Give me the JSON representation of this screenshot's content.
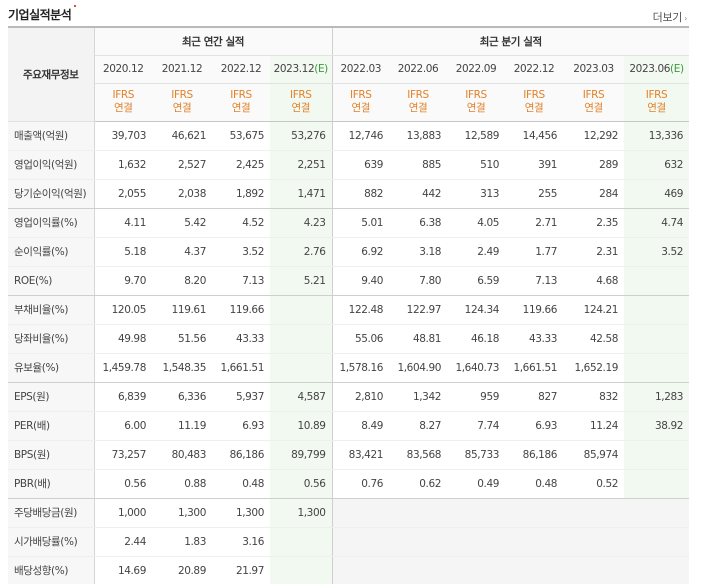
{
  "header": {
    "title": "기업실적분석",
    "more_label": "더보기",
    "more_arrow": "›"
  },
  "table": {
    "row_header_label": "주요재무정보",
    "group_annual": "최근 연간 실적",
    "group_quarter": "최근 분기 실적",
    "annual_periods": [
      {
        "label": "2020.12",
        "est": ""
      },
      {
        "label": "2021.12",
        "est": ""
      },
      {
        "label": "2022.12",
        "est": ""
      },
      {
        "label": "2023.12",
        "est": "(E)"
      }
    ],
    "quarter_periods": [
      {
        "label": "2022.03",
        "est": ""
      },
      {
        "label": "2022.06",
        "est": ""
      },
      {
        "label": "2022.09",
        "est": ""
      },
      {
        "label": "2022.12",
        "est": ""
      },
      {
        "label": "2023.03",
        "est": ""
      },
      {
        "label": "2023.06",
        "est": "(E)"
      }
    ],
    "basis_line1": "IFRS",
    "basis_line2": "연결",
    "rows": [
      {
        "label": "매출액(억원)",
        "values": [
          "39,703",
          "46,621",
          "53,675",
          "53,276",
          "12,746",
          "13,883",
          "12,589",
          "14,456",
          "12,292",
          "13,336"
        ]
      },
      {
        "label": "영업이익(억원)",
        "values": [
          "1,632",
          "2,527",
          "2,425",
          "2,251",
          "639",
          "885",
          "510",
          "391",
          "289",
          "632"
        ]
      },
      {
        "label": "당기순이익(억원)",
        "values": [
          "2,055",
          "2,038",
          "1,892",
          "1,471",
          "882",
          "442",
          "313",
          "255",
          "284",
          "469"
        ]
      },
      {
        "label": "영업이익률(%)",
        "values": [
          "4.11",
          "5.42",
          "4.52",
          "4.23",
          "5.01",
          "6.38",
          "4.05",
          "2.71",
          "2.35",
          "4.74"
        ]
      },
      {
        "label": "순이익률(%)",
        "values": [
          "5.18",
          "4.37",
          "3.52",
          "2.76",
          "6.92",
          "3.18",
          "2.49",
          "1.77",
          "2.31",
          "3.52"
        ]
      },
      {
        "label": "ROE(%)",
        "values": [
          "9.70",
          "8.20",
          "7.13",
          "5.21",
          "9.40",
          "7.80",
          "6.59",
          "7.13",
          "4.68",
          ""
        ]
      },
      {
        "label": "부채비율(%)",
        "values": [
          "120.05",
          "119.61",
          "119.66",
          "",
          "122.48",
          "122.97",
          "124.34",
          "119.66",
          "124.21",
          ""
        ]
      },
      {
        "label": "당좌비율(%)",
        "values": [
          "49.98",
          "51.56",
          "43.33",
          "",
          "55.06",
          "48.81",
          "46.18",
          "43.33",
          "42.58",
          ""
        ]
      },
      {
        "label": "유보율(%)",
        "values": [
          "1,459.78",
          "1,548.35",
          "1,661.51",
          "",
          "1,578.16",
          "1,604.90",
          "1,640.73",
          "1,661.51",
          "1,652.19",
          ""
        ]
      },
      {
        "label": "EPS(원)",
        "values": [
          "6,839",
          "6,336",
          "5,937",
          "4,587",
          "2,810",
          "1,342",
          "959",
          "827",
          "832",
          "1,283"
        ]
      },
      {
        "label": "PER(배)",
        "values": [
          "6.00",
          "11.19",
          "6.93",
          "10.89",
          "8.49",
          "8.27",
          "7.74",
          "6.93",
          "11.24",
          "38.92"
        ]
      },
      {
        "label": "BPS(원)",
        "values": [
          "73,257",
          "80,483",
          "86,186",
          "89,799",
          "83,421",
          "83,568",
          "85,733",
          "86,186",
          "85,974",
          ""
        ]
      },
      {
        "label": "PBR(배)",
        "values": [
          "0.56",
          "0.88",
          "0.48",
          "0.56",
          "0.76",
          "0.62",
          "0.49",
          "0.48",
          "0.52",
          ""
        ]
      },
      {
        "label": "주당배당금(원)",
        "values": [
          "1,000",
          "1,300",
          "1,300",
          "1,300",
          "",
          "",
          "",
          "",
          "",
          ""
        ]
      },
      {
        "label": "시가배당률(%)",
        "values": [
          "2.44",
          "1.83",
          "3.16",
          "",
          "",
          "",
          "",
          "",
          "",
          ""
        ]
      },
      {
        "label": "배당성향(%)",
        "values": [
          "14.69",
          "20.89",
          "21.97",
          "",
          "",
          "",
          "",
          "",
          "",
          ""
        ]
      }
    ],
    "group_end_rows": [
      2,
      5,
      8,
      12
    ],
    "empty_quarter_from_row": 13
  }
}
